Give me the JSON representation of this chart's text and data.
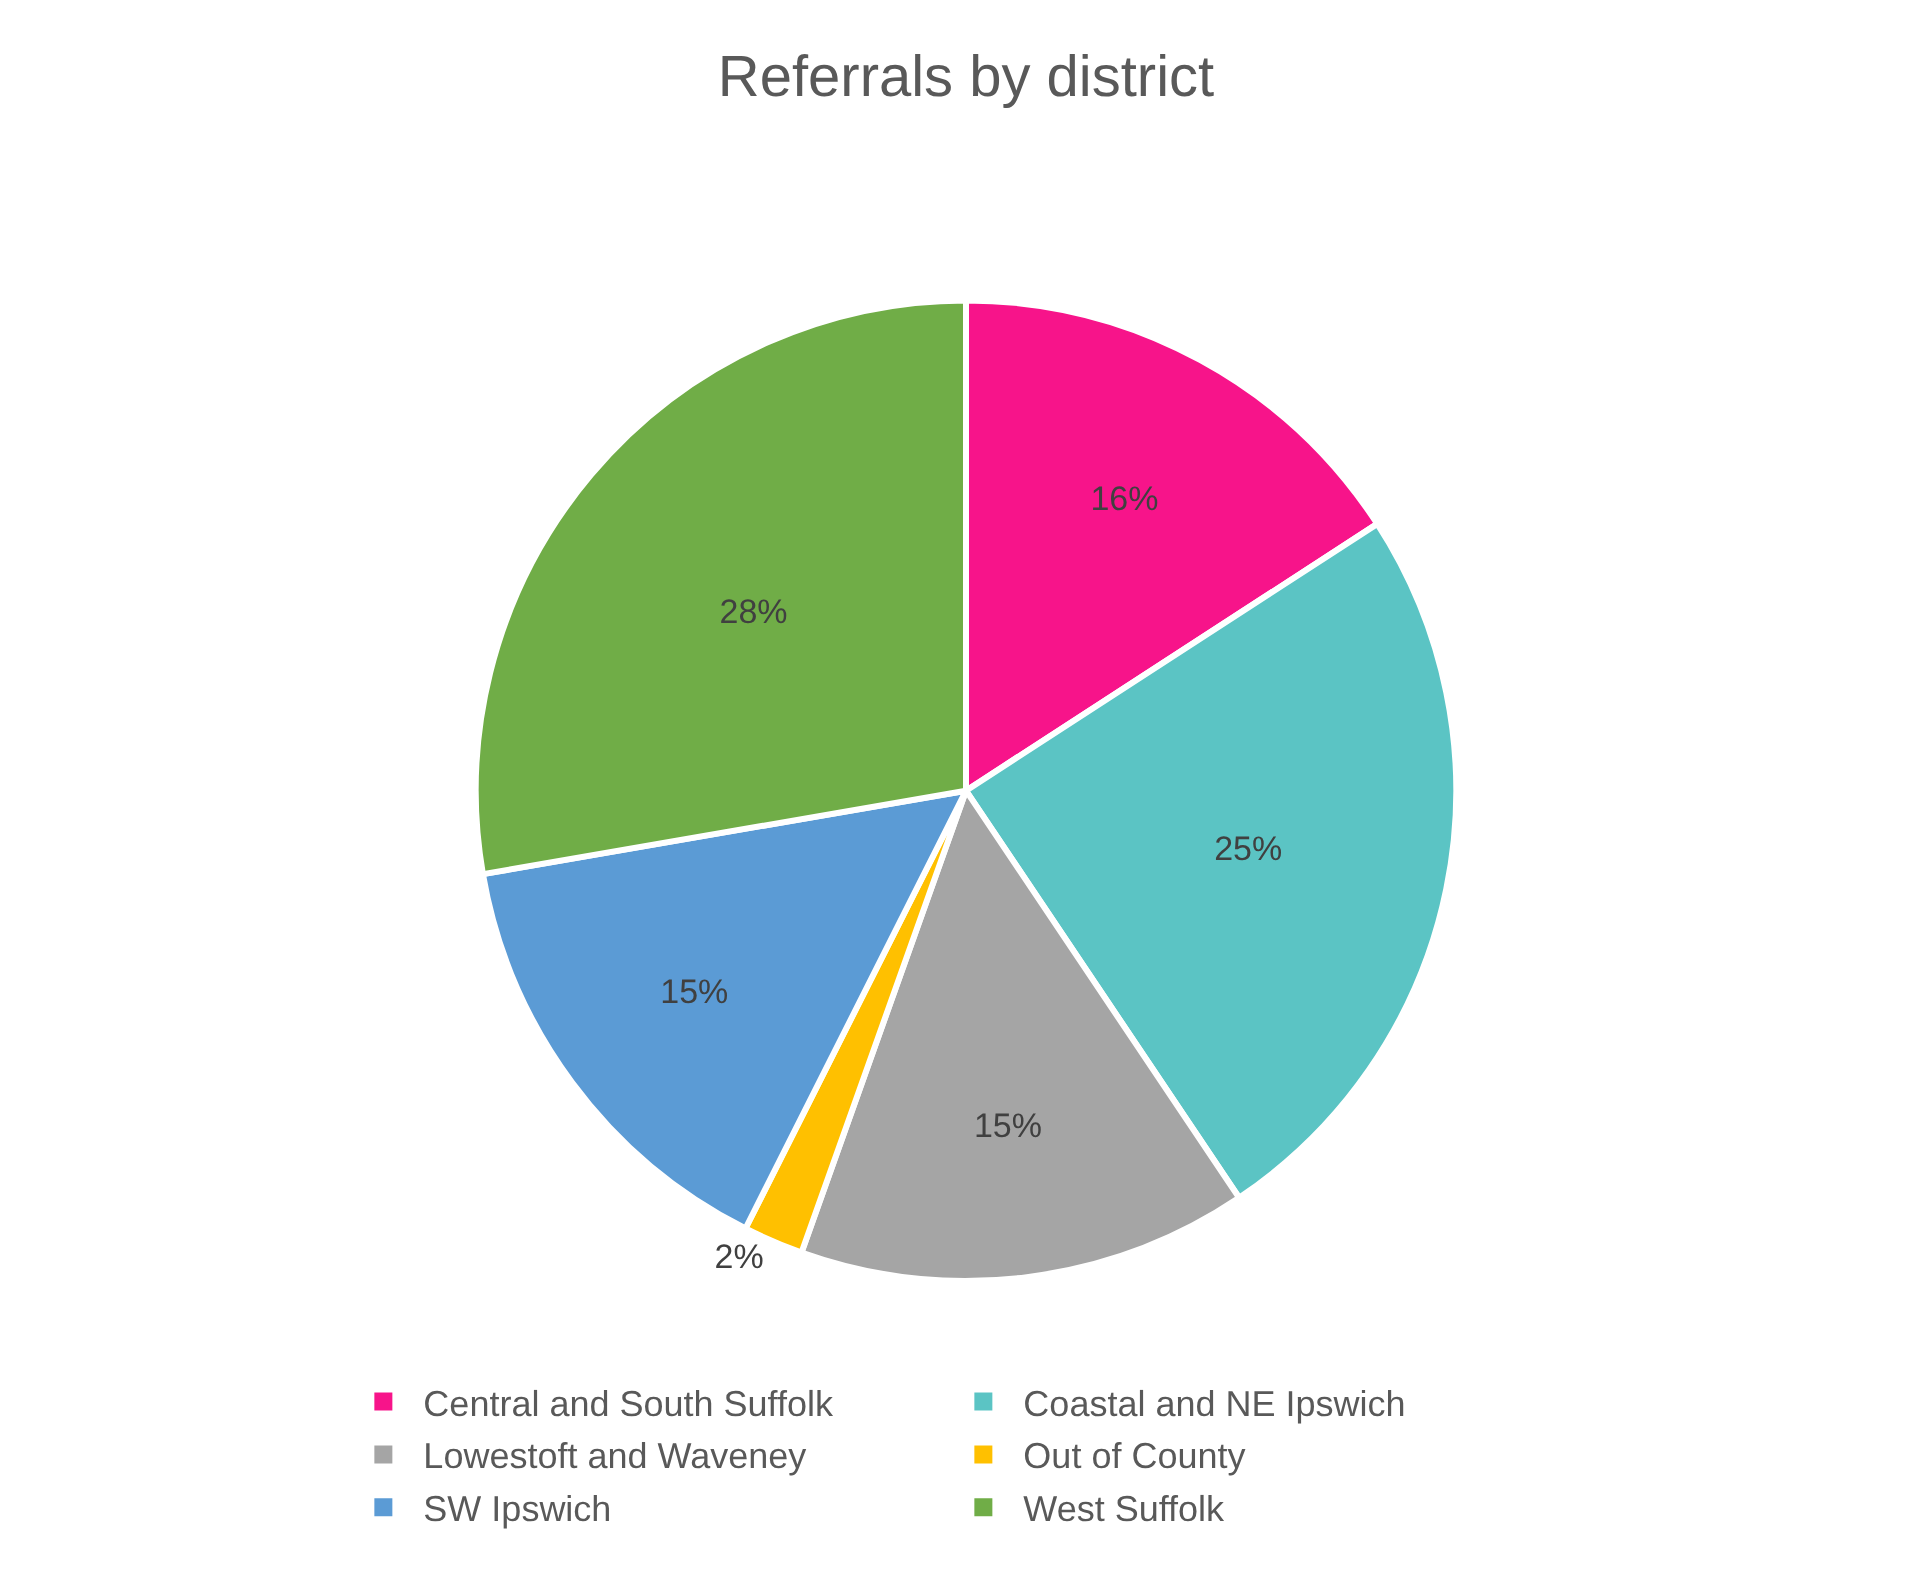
{
  "chart_data": {
    "type": "pie",
    "title": "Referrals by district",
    "categories": [
      "Central and South Suffolk",
      "Coastal and NE Ipswich",
      "Lowestoft and Waveney",
      "Out of County",
      "SW Ipswich",
      "West Suffolk"
    ],
    "values": [
      16,
      25,
      15,
      2,
      15,
      28
    ],
    "colors": [
      "#f7148a",
      "#5bc4c4",
      "#a5a5a5",
      "#ffc000",
      "#5b9bd5",
      "#70ad47"
    ],
    "value_labels": [
      "16%",
      "25%",
      "15%",
      "2%",
      "15%",
      "28%"
    ],
    "legend": "bottom"
  }
}
